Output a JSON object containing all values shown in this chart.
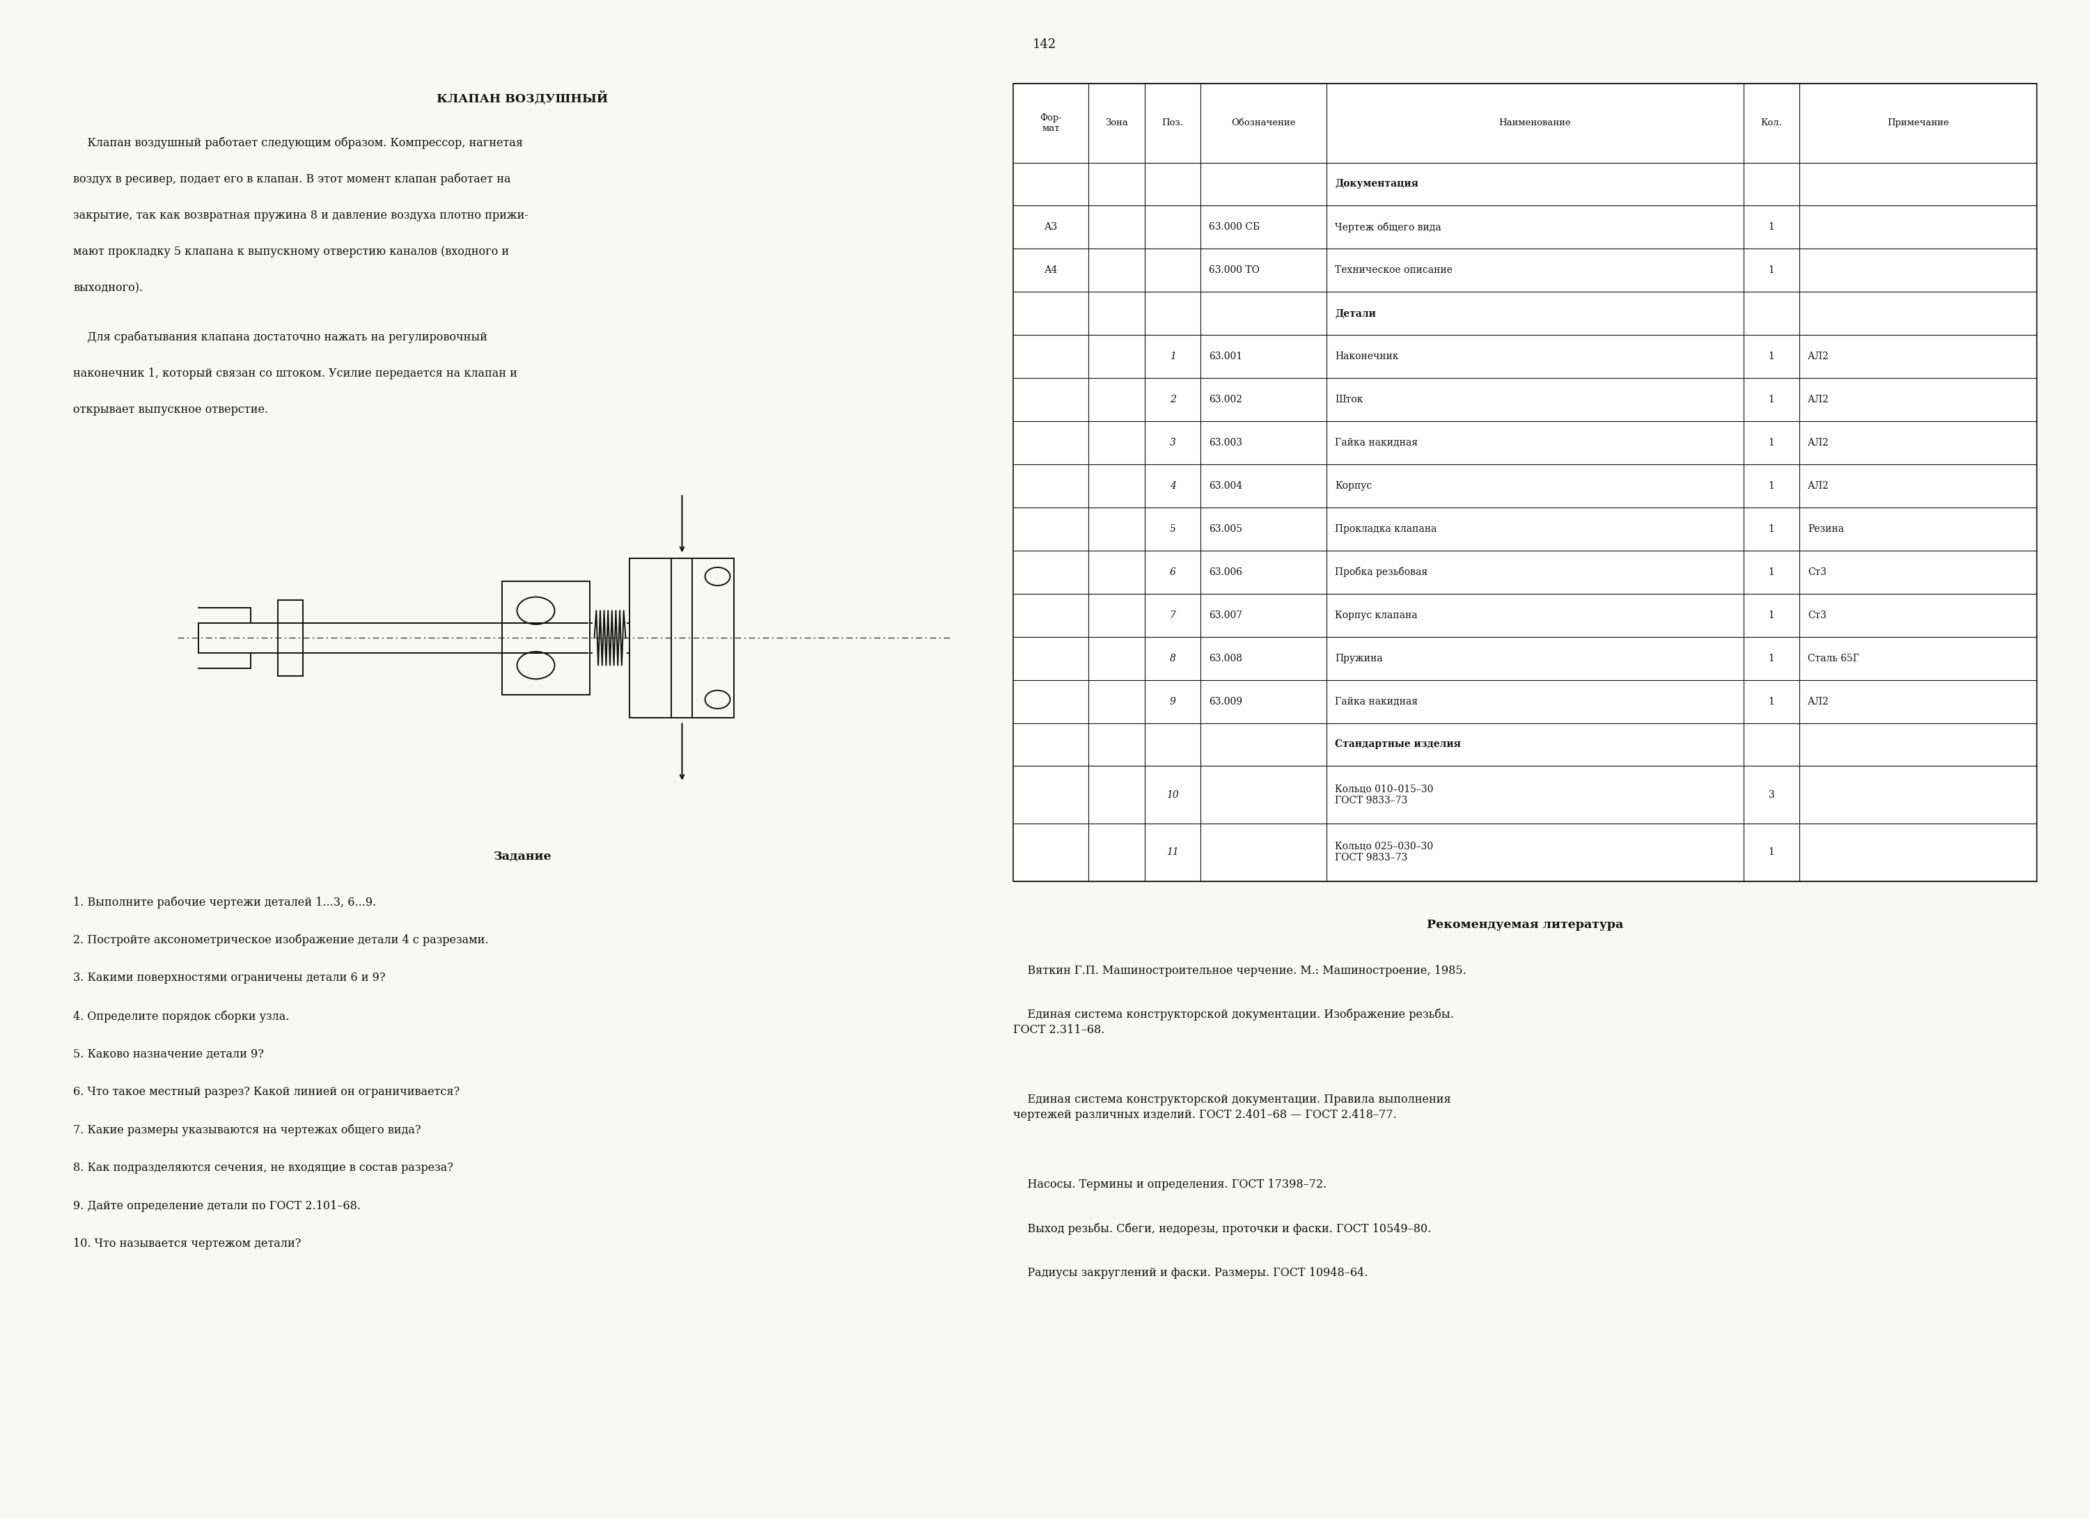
{
  "page_number": "142",
  "bg_color": "#f8f8f4",
  "title": "КЛАПАН ВОЗДУШНЫЙ",
  "para1_lines": [
    "    Клапан воздушный работает следующим образом. Компрессор, нагнетая",
    "воздух в ресивер, подает его в клапан. В этот момент клапан работает на",
    "закрытие, так как возвратная пружина 8 и давление воздуха плотно прижи-",
    "мают прокладку 5 клапана к выпускному отверстию каналов (входного и",
    "выходного)."
  ],
  "para2_lines": [
    "    Для срабатывания клапана достаточно нажать на регулировочный",
    "наконечник 1, который связан со штоком. Усилие передается на клапан и",
    "открывает выпускное отверстие."
  ],
  "zadanie_title": "Задание",
  "zadanie_items": [
    "1. Выполните рабочие чертежи деталей 1...3, 6...9.",
    "2. Постройте аксонометрическое изображение детали 4 с разрезами.",
    "3. Какими поверхностями ограничены детали 6 и 9?",
    "4. Определите порядок сборки узла.",
    "5. Каково назначение детали 9?",
    "6. Что такое местный разрез? Какой линией он ограничивается?",
    "7. Какие размеры указываются на чертежах общего вида?",
    "8. Как подразделяются сечения, не входящие в состав разреза?",
    "9. Дайте определение детали по ГОСТ 2.101–68.",
    "10. Что называется чертежом детали?"
  ],
  "lit_title": "Рекомендуемая литература",
  "lit_lines": [
    "    Вяткин Г.П. Машиностроительное черчение. М.: Машиностроение, 1985.",
    "    Единая система конструкторской документации. Изображение резьбы.\nГОСТ 2.311–68.",
    "    Единая система конструкторской документации. Правила выполнения\nчертежей различных изделий. ГОСТ 2.401–68 — ГОСТ 2.418–77.",
    "    Насосы. Термины и определения. ГОСТ 17398–72.",
    "    Выход резьбы. Сбеги, недорезы, проточки и фаски. ГОСТ 10549–80.",
    "    Радиусы закруглений и фаски. Размеры. ГОСТ 10948–64."
  ],
  "lit_bold_parts": [
    "Вяткин Г.П.",
    "Единая система конструкторской документации.",
    "Единая система конструкторской документации.",
    "Насосы.",
    "",
    ""
  ],
  "table_header": [
    "Фор-\nмат",
    "Зона",
    "Поз.",
    "Обозначение",
    "Наименование",
    "Кол.",
    "Примечание"
  ],
  "table_rows": [
    [
      "",
      "",
      "",
      "",
      "Документация",
      "",
      ""
    ],
    [
      "А3",
      "",
      "",
      "63.000 СБ",
      "Чертеж общего вида",
      "1",
      ""
    ],
    [
      "А4",
      "",
      "",
      "63.000 ТО",
      "Техническое описание",
      "1",
      ""
    ],
    [
      "",
      "",
      "",
      "",
      "Детали",
      "",
      ""
    ],
    [
      "",
      "",
      "1",
      "63.001",
      "Наконечник",
      "1",
      "АЛ2"
    ],
    [
      "",
      "",
      "2",
      "63.002",
      "Шток",
      "1",
      "АЛ2"
    ],
    [
      "",
      "",
      "3",
      "63.003",
      "Гайка накидная",
      "1",
      "АЛ2"
    ],
    [
      "",
      "",
      "4",
      "63.004",
      "Корпус",
      "1",
      "АЛ2"
    ],
    [
      "",
      "",
      "5",
      "63.005",
      "Прокладка клапана",
      "1",
      "Резина"
    ],
    [
      "",
      "",
      "6",
      "63.006",
      "Пробка резьбовая",
      "1",
      "Ст3"
    ],
    [
      "",
      "",
      "7",
      "63.007",
      "Корпус клапана",
      "1",
      "Ст3"
    ],
    [
      "",
      "",
      "8",
      "63.008",
      "Пружина",
      "1",
      "Сталь 65Г"
    ],
    [
      "",
      "",
      "9",
      "63.009",
      "Гайка накидная",
      "1",
      "АЛ2"
    ],
    [
      "",
      "",
      "",
      "",
      "Стандартные изделия",
      "",
      ""
    ],
    [
      "",
      "",
      "10",
      "",
      "Кольцо 010–015–30\nГОСТ 9833–73",
      "3",
      ""
    ],
    [
      "",
      "",
      "11",
      "",
      "Кольцо 025–030–30\nГОСТ 9833–73",
      "1",
      ""
    ]
  ],
  "col_weights": [
    1.05,
    0.78,
    0.78,
    1.75,
    5.8,
    0.78,
    3.3
  ]
}
